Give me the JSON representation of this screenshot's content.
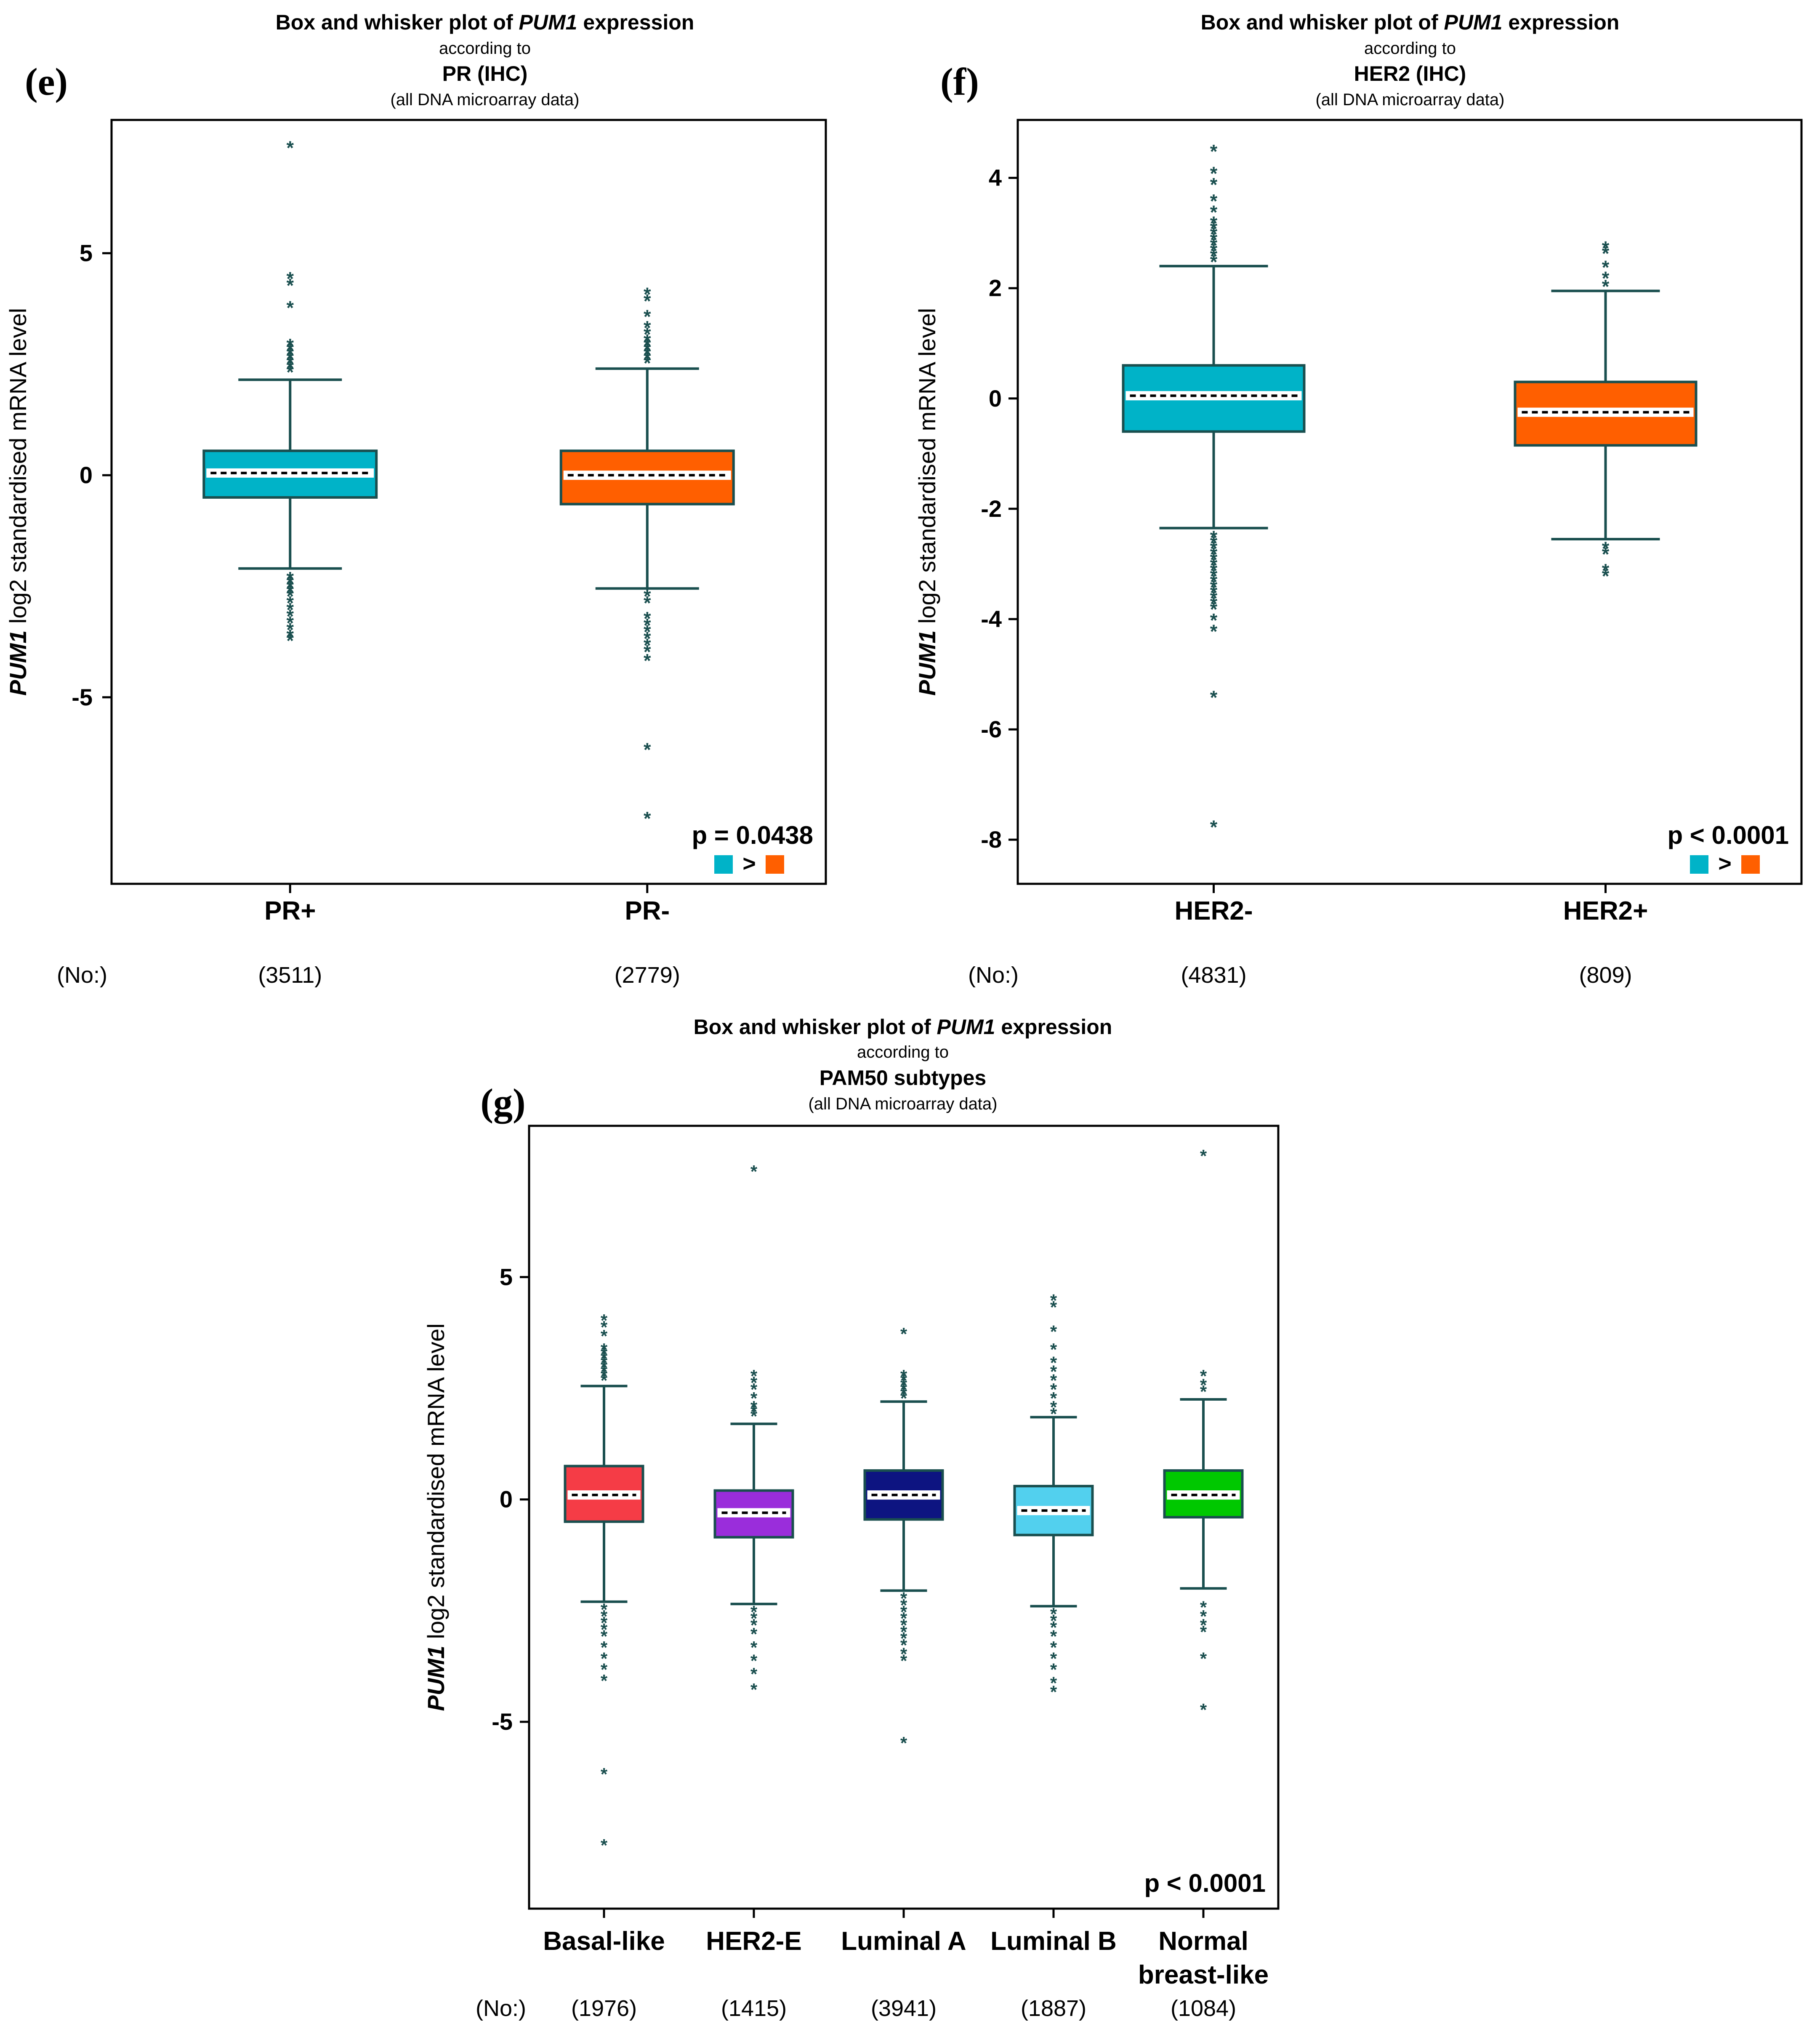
{
  "colors": {
    "outline": "#1a4f4f",
    "cyan": "#00b3c8",
    "orange": "#ff5f00",
    "red": "#f53c46",
    "purple": "#9a2ddb",
    "navy": "#0d1481",
    "lightblue": "#52d0ee",
    "green": "#00c800",
    "median": "#ffffff"
  },
  "chart_data": [
    {
      "type": "box",
      "panel_label": "(e)",
      "title": {
        "line1_prefix": "Box and whisker plot of ",
        "line1_gene": "PUM1",
        "line1_suffix": " expression",
        "line2": "according to",
        "line3": "PR (IHC)",
        "line4": "(all DNA microarray data)"
      },
      "ylabel_gene": "PUM1",
      "ylabel_rest": " log2 standardised mRNA level",
      "ylim": [
        -9.2,
        8.0
      ],
      "yticks": [
        5,
        0,
        -5
      ],
      "ytick_labels": [
        "5",
        "0",
        "-5"
      ],
      "p_value": "p = 0.0438",
      "comparison": ">",
      "no_label": "(No:)",
      "categories": [
        "PR+",
        "PR-"
      ],
      "counts": [
        "(3511)",
        "(2779)"
      ],
      "boxes": [
        {
          "color": "#00b3c8",
          "q1": -0.5,
          "median": 0.05,
          "q3": 0.55,
          "lower_whisker": -2.1,
          "upper_whisker": 2.15,
          "outliers": [
            7.4,
            4.45,
            4.3,
            3.8,
            2.95,
            2.85,
            2.75,
            2.65,
            2.55,
            2.45,
            2.35,
            -2.3,
            -2.4,
            -2.5,
            -2.6,
            -2.7,
            -2.85,
            -3.0,
            -3.15,
            -3.3,
            -3.45,
            -3.6,
            -3.7
          ]
        },
        {
          "color": "#ff5f00",
          "q1": -0.65,
          "median": 0.0,
          "q3": 0.55,
          "lower_whisker": -2.55,
          "upper_whisker": 2.4,
          "outliers": [
            4.1,
            3.95,
            3.6,
            3.35,
            3.2,
            3.05,
            2.95,
            2.85,
            2.75,
            2.65,
            2.55,
            -2.7,
            -2.85,
            -3.2,
            -3.35,
            -3.5,
            -3.65,
            -3.8,
            -3.95,
            -4.15,
            -6.15,
            -7.7
          ]
        }
      ]
    },
    {
      "type": "box",
      "panel_label": "(f)",
      "title": {
        "line1_prefix": "Box and whisker plot of ",
        "line1_gene": "PUM1",
        "line1_suffix": " expression",
        "line2": "according to",
        "line3": "HER2 (IHC)",
        "line4": "(all DNA microarray data)"
      },
      "ylabel_gene": "PUM1",
      "ylabel_rest": " log2 standardised mRNA level",
      "ylim": [
        -8.8,
        5.05
      ],
      "yticks": [
        4,
        2,
        0,
        -2,
        -4,
        -6,
        -8
      ],
      "ytick_labels": [
        "4",
        "2",
        "0",
        "-2",
        "-4",
        "-6",
        "-8"
      ],
      "p_value": "p < 0.0001",
      "comparison": ">",
      "no_label": "(No:)",
      "categories": [
        "HER2-",
        "HER2+"
      ],
      "counts": [
        "(4831)",
        "(809)"
      ],
      "boxes": [
        {
          "color": "#00b3c8",
          "q1": -0.6,
          "median": 0.05,
          "q3": 0.6,
          "lower_whisker": -2.35,
          "upper_whisker": 2.4,
          "outliers": [
            4.5,
            4.1,
            3.9,
            3.6,
            3.4,
            3.2,
            3.1,
            3.0,
            2.9,
            2.8,
            2.7,
            2.6,
            2.5,
            -2.5,
            -2.6,
            -2.7,
            -2.8,
            -2.9,
            -3.0,
            -3.1,
            -3.2,
            -3.3,
            -3.4,
            -3.5,
            -3.6,
            -3.7,
            -3.8,
            -4.0,
            -4.2,
            -5.4,
            -7.75
          ]
        },
        {
          "color": "#ff5f00",
          "q1": -0.85,
          "median": -0.25,
          "q3": 0.3,
          "lower_whisker": -2.55,
          "upper_whisker": 1.95,
          "outliers": [
            2.75,
            2.65,
            2.4,
            2.2,
            2.05,
            -2.7,
            -2.8,
            -3.1,
            -3.2
          ]
        }
      ]
    },
    {
      "type": "box",
      "panel_label": "(g)",
      "title": {
        "line1_prefix": "Box and whisker plot of ",
        "line1_gene": "PUM1",
        "line1_suffix": " expression",
        "line2": "according to",
        "line3": "PAM50 subtypes",
        "line4": "(all DNA microarray data)"
      },
      "ylabel_gene": "PUM1",
      "ylabel_rest": " log2 standardised mRNA level",
      "ylim": [
        -9.2,
        8.4
      ],
      "yticks": [
        5,
        0,
        -5
      ],
      "ytick_labels": [
        "5",
        "0",
        "-5"
      ],
      "p_value": "p < 0.0001",
      "comparison": "",
      "no_label": "(No:)",
      "categories": [
        "Basal-like",
        "HER2-E",
        "Luminal A",
        "Luminal B",
        "Normal|breast-like"
      ],
      "counts": [
        "(1976)",
        "(1415)",
        "(3941)",
        "(1887)",
        "(1084)"
      ],
      "boxes": [
        {
          "color": "#f53c46",
          "q1": -0.5,
          "median": 0.1,
          "q3": 0.75,
          "lower_whisker": -2.3,
          "upper_whisker": 2.55,
          "outliers": [
            4.05,
            3.9,
            3.7,
            3.4,
            3.3,
            3.2,
            3.1,
            3.0,
            2.9,
            2.8,
            2.7,
            -2.45,
            -2.6,
            -2.75,
            -2.9,
            -3.05,
            -3.3,
            -3.55,
            -3.8,
            -4.05,
            -6.15,
            -7.75
          ]
        },
        {
          "color": "#9a2ddb",
          "q1": -0.85,
          "median": -0.3,
          "q3": 0.2,
          "lower_whisker": -2.35,
          "upper_whisker": 1.7,
          "outliers": [
            7.4,
            2.8,
            2.65,
            2.5,
            2.3,
            2.1,
            2.0,
            1.9,
            -2.5,
            -2.65,
            -2.8,
            -3.0,
            -3.3,
            -3.6,
            -3.9,
            -4.25
          ]
        },
        {
          "color": "#0d1481",
          "q1": -0.45,
          "median": 0.1,
          "q3": 0.65,
          "lower_whisker": -2.05,
          "upper_whisker": 2.2,
          "outliers": [
            3.75,
            2.8,
            2.7,
            2.6,
            2.5,
            2.4,
            2.3,
            -2.2,
            -2.35,
            -2.5,
            -2.65,
            -2.8,
            -2.95,
            -3.1,
            -3.25,
            -3.45,
            -3.6,
            -5.45
          ]
        },
        {
          "color": "#52d0ee",
          "q1": -0.8,
          "median": -0.25,
          "q3": 0.3,
          "lower_whisker": -2.4,
          "upper_whisker": 1.85,
          "outliers": [
            4.5,
            4.35,
            3.8,
            3.4,
            3.1,
            2.9,
            2.7,
            2.5,
            2.3,
            2.1,
            1.95,
            -2.55,
            -2.7,
            -2.85,
            -3.05,
            -3.3,
            -3.55,
            -3.8,
            -4.1,
            -4.3
          ]
        },
        {
          "color": "#00c800",
          "q1": -0.4,
          "median": 0.1,
          "q3": 0.65,
          "lower_whisker": -2.0,
          "upper_whisker": 2.25,
          "outliers": [
            7.75,
            2.8,
            2.6,
            2.45,
            -2.4,
            -2.6,
            -2.8,
            -2.95,
            -3.55,
            -4.7
          ]
        }
      ]
    }
  ]
}
